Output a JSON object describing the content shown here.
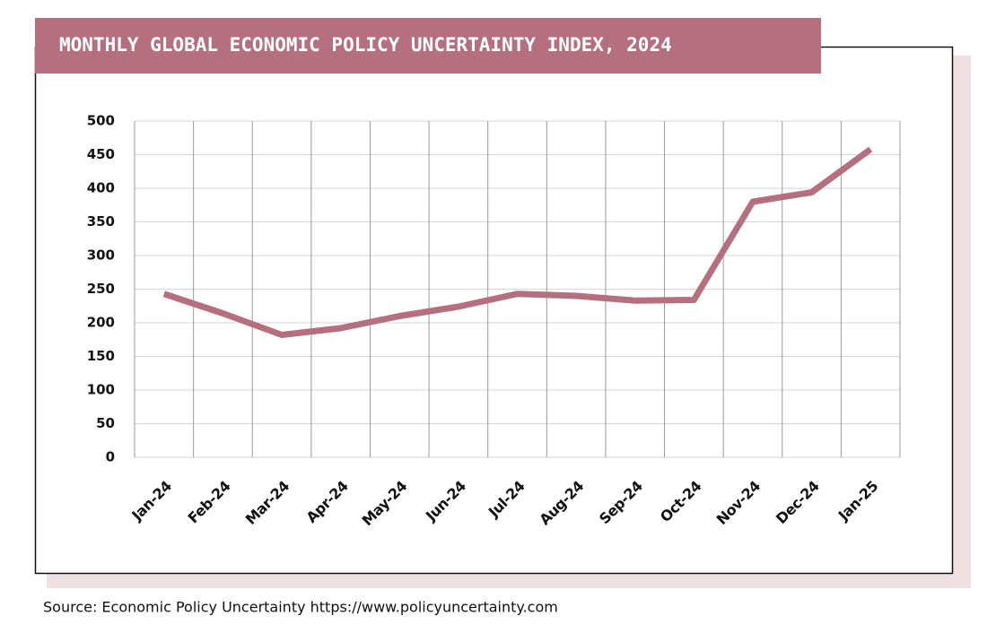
{
  "chart_data": {
    "type": "line",
    "title": "MONTHLY GLOBAL ECONOMIC POLICY UNCERTAINTY INDEX, 2024",
    "source": "Source: Economic Policy Uncertainty https://www.policyuncertainty.com",
    "categories": [
      "Jan-24",
      "Feb-24",
      "Mar-24",
      "Apr-24",
      "May-24",
      "Jun-24",
      "Jul-24",
      "Aug-24",
      "Sep-24",
      "Oct-24",
      "Nov-24",
      "Dec-24",
      "Jan-25"
    ],
    "values": [
      243,
      214,
      182,
      192,
      210,
      224,
      243,
      240,
      233,
      234,
      380,
      394,
      458
    ],
    "color": "#b5707f",
    "ylim": [
      0,
      500
    ],
    "yticks": [
      0,
      50,
      100,
      150,
      200,
      250,
      300,
      350,
      400,
      450,
      500
    ],
    "grid": true
  }
}
